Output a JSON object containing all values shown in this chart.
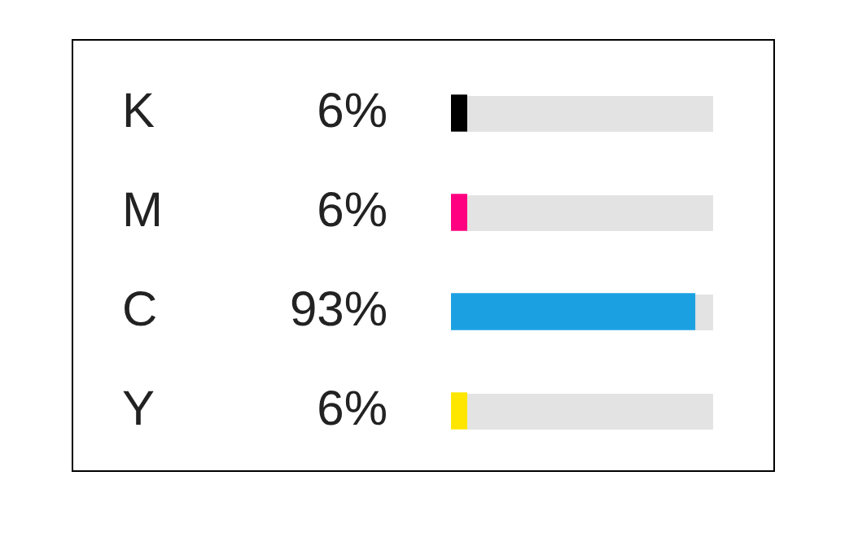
{
  "chart_data": {
    "type": "bar",
    "orientation": "horizontal",
    "categories": [
      "K",
      "M",
      "C",
      "Y"
    ],
    "values": [
      6,
      6,
      93,
      6
    ],
    "colors": [
      "#000000",
      "#ff0080",
      "#1ba1e2",
      "#ffe600"
    ],
    "value_labels": [
      "6%",
      "6%",
      "93%",
      "6%"
    ],
    "xlim": [
      0,
      100
    ]
  }
}
